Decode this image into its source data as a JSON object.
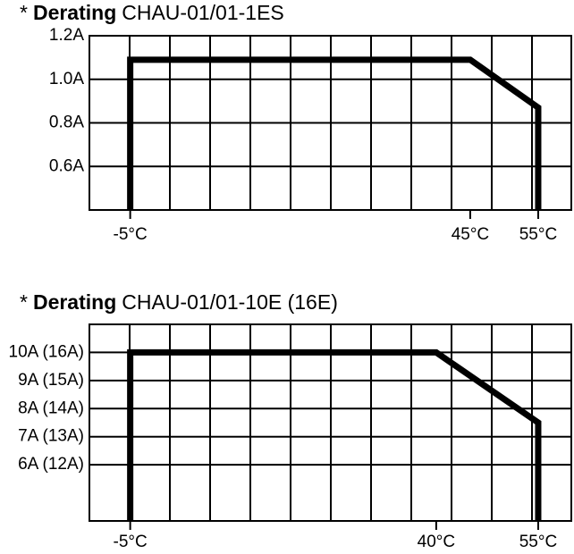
{
  "chart_data": [
    {
      "type": "line",
      "title": [
        "*",
        "Derating",
        "CHAU-01/01-1ES"
      ],
      "x": [
        -5,
        -5,
        45,
        55,
        55
      ],
      "series": [
        {
          "color": "#000000",
          "values": [
            0.4,
            1.09,
            1.09,
            0.87,
            0.4
          ]
        }
      ],
      "xlim": [
        -11,
        60
      ],
      "ylim": [
        0.4,
        1.2
      ],
      "xticks": [
        {
          "value": -5,
          "label": "-5°C"
        },
        {
          "value": 45,
          "label": "45°C"
        },
        {
          "value": 55,
          "label": "55°C"
        }
      ],
      "yticks": [
        {
          "value": 0.6,
          "label": "0.6A"
        },
        {
          "value": 0.8,
          "label": "0.8A"
        },
        {
          "value": 1.0,
          "label": "1.0A"
        },
        {
          "value": 1.2,
          "label": "1.2A"
        }
      ],
      "grid": true
    },
    {
      "type": "line",
      "title": [
        "*",
        "Derating",
        "CHAU-01/01-10E (16E)"
      ],
      "x": [
        -5,
        -5,
        40,
        55,
        55
      ],
      "series": [
        {
          "color": "#000000",
          "values": [
            4,
            10,
            10,
            7.5,
            4
          ]
        }
      ],
      "xlim": [
        -11,
        60
      ],
      "ylim": [
        4,
        11
      ],
      "xticks": [
        {
          "value": -5,
          "label": "-5°C"
        },
        {
          "value": 40,
          "label": "40°C"
        },
        {
          "value": 55,
          "label": "55°C"
        }
      ],
      "yticks": [
        {
          "value": 6,
          "label": "6A (12A)"
        },
        {
          "value": 7,
          "label": "7A (13A)"
        },
        {
          "value": 8,
          "label": "8A (14A)"
        },
        {
          "value": 9,
          "label": "9A (15A)"
        },
        {
          "value": 10,
          "label": "10A (16A)"
        }
      ],
      "grid": true
    }
  ]
}
